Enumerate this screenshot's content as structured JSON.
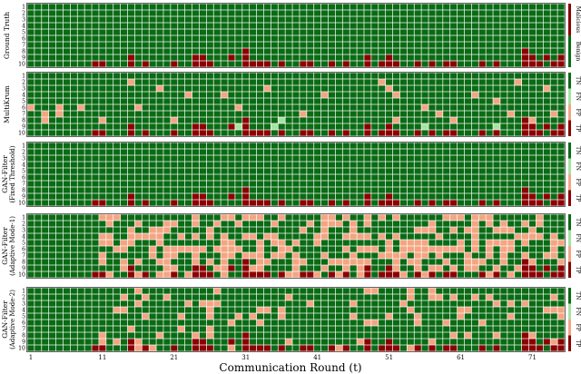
{
  "chart_data": {
    "type": "heatmap",
    "xlabel": "Communication Round (t)",
    "x_ticks": [
      "1",
      "11",
      "21",
      "31",
      "41",
      "51",
      "61",
      "71"
    ],
    "rows": [
      "1",
      "2",
      "3",
      "4",
      "5",
      "6",
      "7",
      "8",
      "9",
      "10"
    ],
    "n_rounds": 75,
    "panels": [
      {
        "key": "gt",
        "label": "Ground Truth",
        "sublabel": "",
        "legend": [
          "Benign",
          "Malicious"
        ],
        "legend_kind": "binary"
      },
      {
        "key": "mk",
        "label": "MultiKrum",
        "sublabel": "",
        "legend": [
          "TP",
          "FP",
          "FN",
          "TN"
        ],
        "legend_kind": "confusion"
      },
      {
        "key": "gf",
        "label": "GAN-Filter",
        "sublabel": "(Fixed Threshold)",
        "legend": [
          "TP",
          "FP",
          "FN",
          "TN"
        ],
        "legend_kind": "confusion"
      },
      {
        "key": "ga1",
        "label": "GAN-Filter",
        "sublabel": "(Adaptive Mode-1)",
        "legend": [
          "TP",
          "FP",
          "FN",
          "TN"
        ],
        "legend_kind": "confusion"
      },
      {
        "key": "ga2",
        "label": "GAN-Filter",
        "sublabel": "(Adaptive Mode-2)",
        "legend": [
          "TP",
          "FP",
          "FN",
          "TN"
        ],
        "legend_kind": "confusion"
      }
    ],
    "malicious_cells": [
      [
        10,
        10
      ],
      [
        10,
        11
      ],
      [
        9,
        15
      ],
      [
        10,
        15
      ],
      [
        10,
        17
      ],
      [
        10,
        21
      ],
      [
        9,
        24
      ],
      [
        10,
        24
      ],
      [
        9,
        25
      ],
      [
        10,
        25
      ],
      [
        10,
        26
      ],
      [
        9,
        29
      ],
      [
        10,
        31
      ],
      [
        9,
        31
      ],
      [
        8,
        31
      ],
      [
        10,
        32
      ],
      [
        10,
        33
      ],
      [
        10,
        34
      ],
      [
        10,
        36
      ],
      [
        10,
        39
      ],
      [
        10,
        40
      ],
      [
        10,
        43
      ],
      [
        10,
        45
      ],
      [
        9,
        48
      ],
      [
        10,
        48
      ],
      [
        10,
        50
      ],
      [
        9,
        51
      ],
      [
        10,
        51
      ],
      [
        10,
        52
      ],
      [
        10,
        55
      ],
      [
        10,
        57
      ],
      [
        10,
        59
      ],
      [
        10,
        60
      ],
      [
        10,
        64
      ],
      [
        10,
        66
      ],
      [
        8,
        70
      ],
      [
        9,
        70
      ],
      [
        10,
        70
      ],
      [
        9,
        71
      ],
      [
        10,
        71
      ],
      [
        10,
        72
      ],
      [
        9,
        73
      ],
      [
        10,
        74
      ],
      [
        9,
        75
      ],
      [
        10,
        75
      ]
    ],
    "multikrum_fp_cells": [
      [
        6,
        1
      ],
      [
        7,
        3
      ],
      [
        8,
        3
      ],
      [
        6,
        5
      ],
      [
        7,
        5
      ],
      [
        2,
        15
      ],
      [
        6,
        16
      ],
      [
        3,
        19
      ],
      [
        8,
        21
      ],
      [
        4,
        23
      ],
      [
        4,
        28
      ],
      [
        6,
        30
      ],
      [
        3,
        34
      ],
      [
        7,
        39
      ],
      [
        4,
        42
      ],
      [
        2,
        50
      ],
      [
        3,
        51
      ],
      [
        4,
        52
      ],
      [
        8,
        52
      ],
      [
        6,
        56
      ],
      [
        7,
        58
      ],
      [
        8,
        60
      ],
      [
        4,
        63
      ],
      [
        5,
        66
      ],
      [
        7,
        68
      ],
      [
        2,
        69
      ],
      [
        8,
        71
      ],
      [
        3,
        73
      ],
      [
        7,
        74
      ],
      [
        6,
        8
      ],
      [
        8,
        11
      ]
    ],
    "multikrum_fn_cells": [
      [
        9,
        30
      ],
      [
        9,
        35
      ],
      [
        8,
        36
      ],
      [
        9,
        56
      ],
      [
        9,
        66
      ]
    ],
    "multikrum_missed_tp": [
      [
        10,
        31
      ],
      [
        9,
        48
      ],
      [
        10,
        70
      ]
    ],
    "ga1_fp_density": 0.38,
    "ga1_fp_start_round": 11,
    "ga2_fp_density": 0.12,
    "ga2_fp_start_round": 11,
    "colors": {
      "benign": "#0a6b14",
      "malicious": "#8b0000",
      "tp": "#8b0000",
      "fp": "#f4a582",
      "fn": "#a6e3a1",
      "tn": "#0a6b14"
    }
  }
}
